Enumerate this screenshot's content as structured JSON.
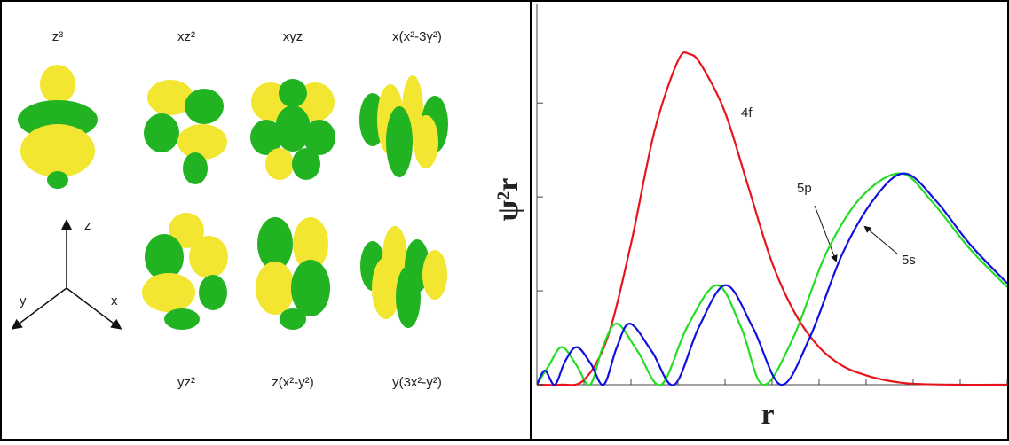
{
  "orbitals": {
    "top": [
      "z³",
      "xz²",
      "xyz",
      "x(x²-3y²)"
    ],
    "bottom": [
      "yz²",
      "z(x²-y²)",
      "y(3x²-y²)"
    ],
    "axes": [
      "z",
      "y",
      "x"
    ]
  },
  "chart_data": {
    "type": "line",
    "y_label": "ψ²r",
    "x_label": "r",
    "xlim": [
      0,
      10
    ],
    "xticks": [
      0,
      1,
      2,
      3,
      4,
      5,
      6,
      7,
      8,
      9,
      10
    ],
    "ylim": [
      0,
      4.05
    ],
    "yticks": [
      0,
      1,
      2,
      3
    ],
    "series": [
      {
        "name": "4f",
        "color": "#e8141c",
        "x": [
          0,
          0.5,
          1,
          1.5,
          2,
          2.5,
          3,
          3.25,
          3.5,
          4,
          4.5,
          5,
          5.5,
          6,
          6.5,
          7,
          7.5,
          8,
          9,
          10
        ],
        "values": [
          0,
          0,
          0.05,
          0.5,
          1.5,
          2.7,
          3.45,
          3.52,
          3.4,
          2.9,
          2.1,
          1.3,
          0.75,
          0.4,
          0.2,
          0.1,
          0.04,
          0.01,
          0,
          0
        ]
      },
      {
        "name": "5p",
        "color": "#22dd22",
        "x": [
          0,
          0.25,
          0.53,
          0.85,
          1.13,
          1.4,
          1.7,
          2.15,
          2.64,
          3.2,
          3.83,
          4.35,
          4.81,
          5.45,
          6.15,
          6.9,
          7.74,
          8.4,
          9.2,
          10
        ],
        "values": [
          0,
          0.2,
          0.4,
          0.2,
          0,
          0.4,
          0.65,
          0.35,
          0,
          0.62,
          1.06,
          0.6,
          0,
          0.5,
          1.4,
          2.0,
          2.25,
          1.95,
          1.45,
          1.04
        ]
      },
      {
        "name": "5s",
        "color": "#1010e0",
        "x": [
          0,
          0.17,
          0.38,
          0.6,
          0.85,
          1.15,
          1.42,
          1.7,
          1.98,
          2.45,
          2.92,
          3.45,
          4.02,
          4.6,
          5.19,
          5.8,
          6.5,
          7.2,
          7.83,
          8.5,
          9.2,
          10
        ],
        "values": [
          0,
          0.15,
          0,
          0.25,
          0.4,
          0.22,
          0,
          0.4,
          0.65,
          0.35,
          0,
          0.62,
          1.06,
          0.6,
          0,
          0.5,
          1.4,
          2.0,
          2.25,
          1.95,
          1.5,
          1.08
        ]
      }
    ]
  }
}
